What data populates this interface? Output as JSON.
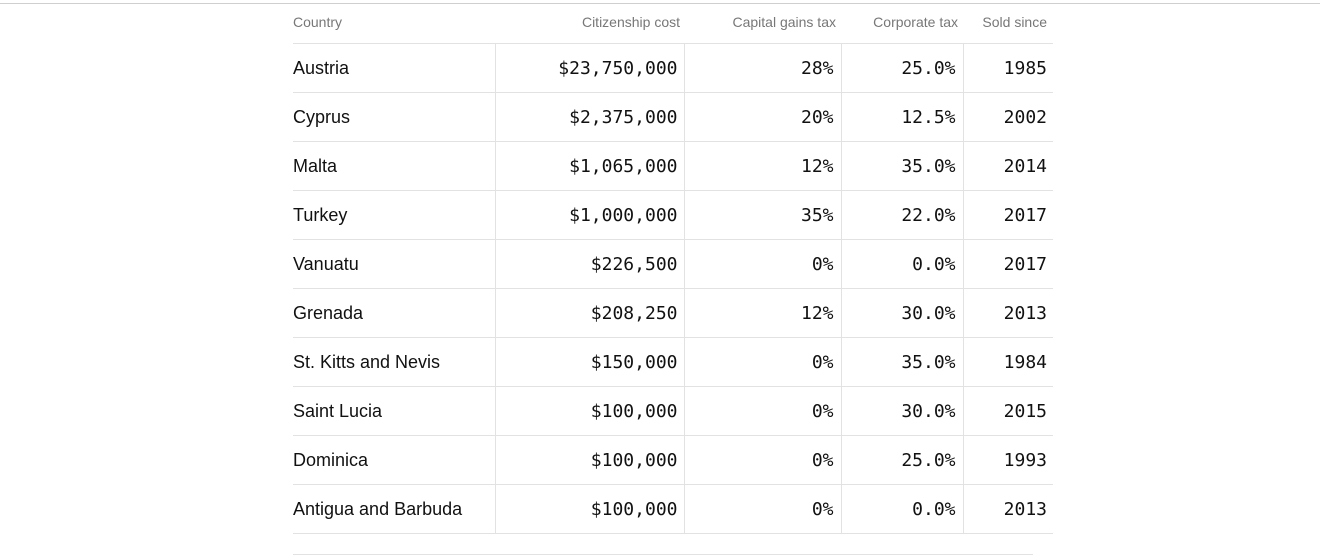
{
  "table": {
    "headers": {
      "country": "Country",
      "cost": "Citizenship cost",
      "cgt": "Capital gains tax",
      "corp": "Corporate tax",
      "sold": "Sold since"
    },
    "rows": [
      {
        "country": "Austria",
        "cost": "$23,750,000",
        "cgt": "28%",
        "corp": "25.0%",
        "sold": "1985"
      },
      {
        "country": "Cyprus",
        "cost": "$2,375,000",
        "cgt": "20%",
        "corp": "12.5%",
        "sold": "2002"
      },
      {
        "country": "Malta",
        "cost": "$1,065,000",
        "cgt": "12%",
        "corp": "35.0%",
        "sold": "2014"
      },
      {
        "country": "Turkey",
        "cost": "$1,000,000",
        "cgt": "35%",
        "corp": "22.0%",
        "sold": "2017"
      },
      {
        "country": "Vanuatu",
        "cost": "$226,500",
        "cgt": "0%",
        "corp": "0.0%",
        "sold": "2017"
      },
      {
        "country": "Grenada",
        "cost": "$208,250",
        "cgt": "12%",
        "corp": "30.0%",
        "sold": "2013"
      },
      {
        "country": "St. Kitts and Nevis",
        "cost": "$150,000",
        "cgt": "0%",
        "corp": "35.0%",
        "sold": "1984"
      },
      {
        "country": "Saint Lucia",
        "cost": "$100,000",
        "cgt": "0%",
        "corp": "30.0%",
        "sold": "2015"
      },
      {
        "country": "Dominica",
        "cost": "$100,000",
        "cgt": "0%",
        "corp": "25.0%",
        "sold": "1993"
      },
      {
        "country": "Antigua and Barbuda",
        "cost": "$100,000",
        "cgt": "0%",
        "corp": "0.0%",
        "sold": "2013"
      }
    ]
  }
}
